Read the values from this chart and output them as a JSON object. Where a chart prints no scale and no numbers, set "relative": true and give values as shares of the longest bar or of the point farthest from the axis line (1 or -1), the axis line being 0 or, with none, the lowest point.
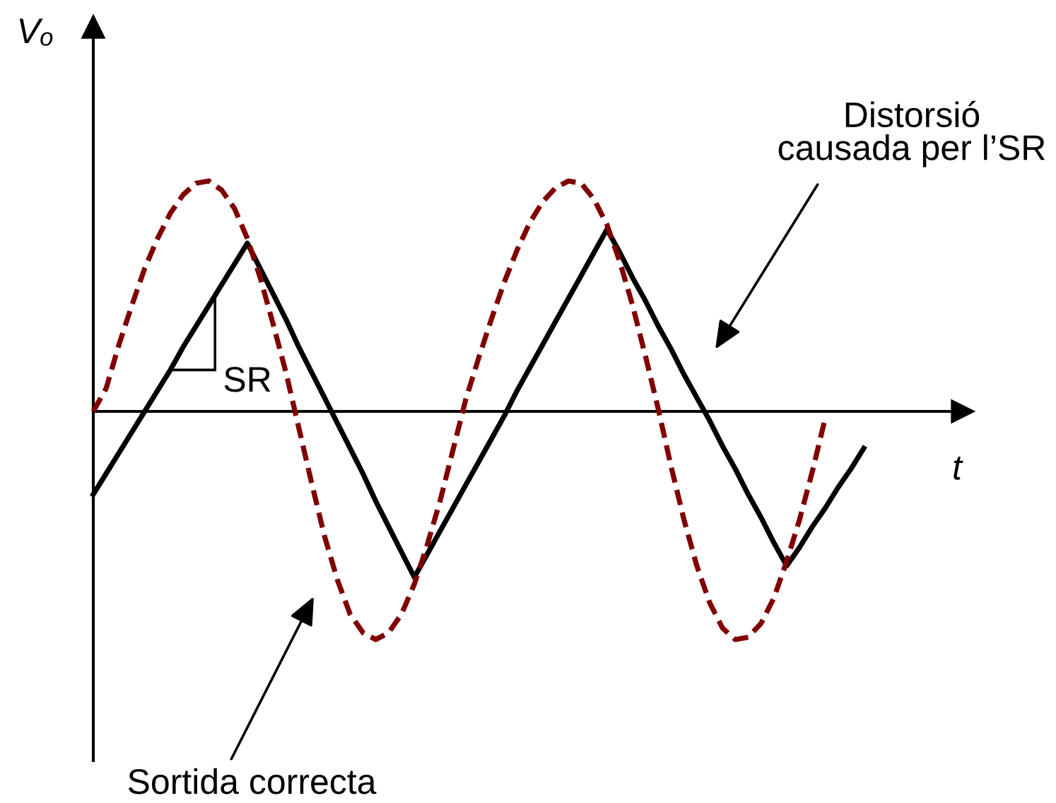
{
  "chart_data": {
    "type": "line",
    "relative": true,
    "xlabel": "t",
    "ylabel": "Vₒ",
    "annotations": [
      "Distorsió\ncausada per l’SR",
      "Sortida correcta",
      "SR"
    ],
    "categories": [
      null,
      null,
      null,
      null,
      null,
      null,
      null,
      null,
      null,
      null,
      null,
      null,
      null,
      null,
      null,
      null,
      null,
      null,
      null,
      null,
      null,
      null,
      null,
      null,
      null,
      null,
      null,
      null,
      null,
      null,
      null,
      null,
      null,
      null,
      null,
      null,
      null,
      null,
      null,
      null,
      null,
      null,
      null,
      null,
      null,
      null,
      null,
      null,
      null,
      null,
      null,
      null,
      null,
      null,
      null,
      null,
      null,
      null,
      null,
      null,
      null
    ],
    "series": [
      {
        "color": "#000000",
        "line_style": "solid",
        "values": [
          -0.36,
          -0.27,
          -0.18,
          -0.09,
          0.0,
          0.09,
          0.18,
          0.28,
          0.37,
          0.46,
          0.55,
          0.64,
          0.73,
          0.62,
          0.51,
          0.4,
          0.28,
          0.17,
          0.06,
          -0.05,
          -0.16,
          -0.27,
          -0.39,
          -0.5,
          -0.61,
          -0.72,
          -0.62,
          -0.52,
          -0.42,
          -0.32,
          -0.22,
          -0.12,
          -0.02,
          0.09,
          0.19,
          0.29,
          0.39,
          0.49,
          0.59,
          0.69,
          0.79,
          0.69,
          0.58,
          0.48,
          0.37,
          0.27,
          0.16,
          0.06,
          -0.04,
          -0.15,
          -0.25,
          -0.36,
          -0.46,
          -0.57,
          -0.67,
          -0.59,
          -0.5,
          -0.42,
          -0.33,
          -0.25,
          -0.16
        ]
      },
      {
        "color": "#800000",
        "line_style": "dashed",
        "values": [
          0.0,
          0.1,
          0.29,
          0.46,
          0.62,
          0.75,
          0.86,
          0.94,
          0.99,
          1.0,
          0.96,
          0.88,
          0.75,
          0.58,
          0.38,
          0.17,
          -0.07,
          -0.31,
          -0.54,
          -0.73,
          -0.88,
          -0.96,
          -0.99,
          -0.96,
          -0.88,
          -0.75,
          -0.58,
          -0.39,
          -0.17,
          0.05,
          0.23,
          0.4,
          0.56,
          0.7,
          0.82,
          0.91,
          0.97,
          1.0,
          0.99,
          0.92,
          0.81,
          0.65,
          0.46,
          0.24,
          0.01,
          -0.24,
          -0.47,
          -0.67,
          -0.83,
          -0.94,
          -0.99,
          -0.98,
          -0.92,
          -0.81,
          -0.65,
          -0.47,
          -0.26,
          -0.03,
          null,
          null,
          null
        ]
      }
    ]
  }
}
